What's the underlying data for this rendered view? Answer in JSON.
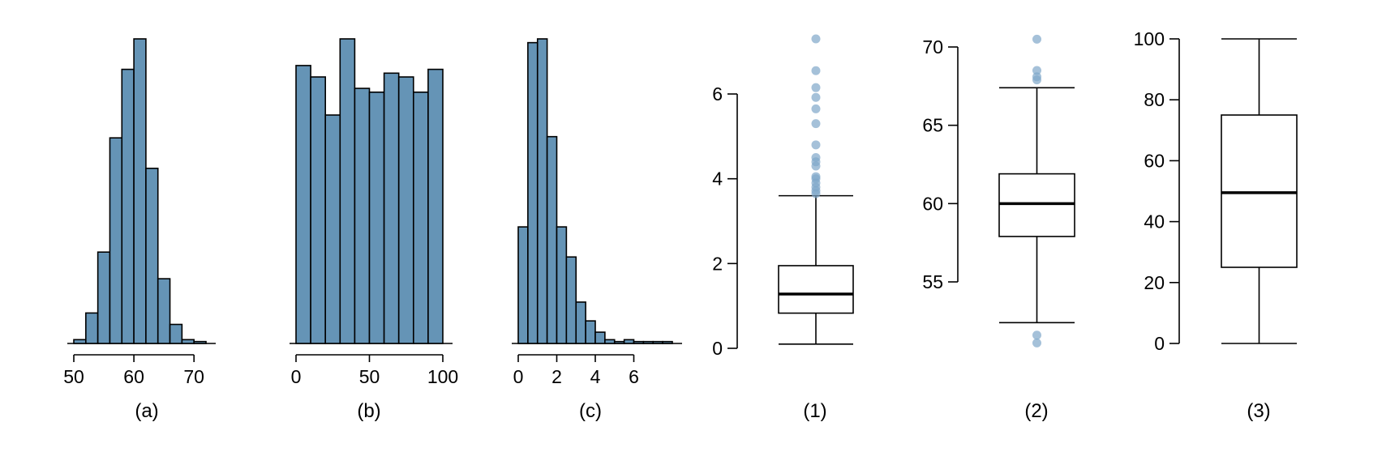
{
  "chart_data": [
    {
      "type": "bar",
      "subtype": "histogram",
      "panel_label": "(a)",
      "bin_start": 50,
      "bin_width": 2,
      "counts": [
        1,
        8,
        24,
        54,
        72,
        80,
        46,
        17,
        5,
        1,
        0.5
      ],
      "xlim": [
        50,
        72
      ],
      "xticks": [
        50,
        60,
        70
      ],
      "y_axis": "none",
      "color": "#6594b6"
    },
    {
      "type": "bar",
      "subtype": "histogram",
      "panel_label": "(b)",
      "bin_start": 0,
      "bin_width": 10,
      "counts": [
        73,
        70,
        60,
        80,
        67,
        66,
        71,
        70,
        66,
        72
      ],
      "xlim": [
        0,
        100
      ],
      "xticks": [
        0,
        50,
        100
      ],
      "y_axis": "none",
      "color": "#6594b6"
    },
    {
      "type": "bar",
      "subtype": "histogram",
      "panel_label": "(c)",
      "bin_start": 0,
      "bin_width": 0.5,
      "counts": [
        31,
        80,
        81,
        55,
        31,
        23,
        11,
        6,
        3,
        1,
        0.5,
        1,
        0.5,
        0.5,
        0.5,
        0.5
      ],
      "xlim": [
        0,
        8
      ],
      "xticks": [
        0,
        2,
        4,
        6
      ],
      "y_axis": "none",
      "color": "#6594b6"
    },
    {
      "type": "box",
      "panel_label": "(1)",
      "whisker_low": 0.1,
      "q1": 0.83,
      "median": 1.28,
      "q3": 1.95,
      "whisker_high": 3.6,
      "outliers": [
        3.65,
        3.72,
        3.8,
        3.9,
        4.0,
        4.05,
        4.3,
        4.4,
        4.5,
        4.8,
        5.3,
        5.65,
        5.92,
        6.15,
        6.55,
        7.3
      ],
      "ylim": [
        0,
        7.3
      ],
      "yticks": [
        0,
        2,
        4,
        6
      ],
      "outlier_color": "#7fa7c9"
    },
    {
      "type": "box",
      "panel_label": "(2)",
      "whisker_low": 52.4,
      "q1": 57.9,
      "median": 60.0,
      "q3": 61.9,
      "whisker_high": 67.4,
      "outliers": [
        51.1,
        51.6,
        67.9,
        68.1,
        68.5,
        70.5
      ],
      "ylim": [
        55,
        70
      ],
      "yticks": [
        55,
        60,
        65,
        70
      ],
      "outlier_color": "#7fa7c9"
    },
    {
      "type": "box",
      "panel_label": "(3)",
      "whisker_low": 0,
      "q1": 25,
      "median": 49.5,
      "q3": 75,
      "whisker_high": 100,
      "outliers": [],
      "ylim": [
        0,
        100
      ],
      "yticks": [
        0,
        20,
        40,
        60,
        80,
        100
      ],
      "outlier_color": "#7fa7c9"
    }
  ]
}
